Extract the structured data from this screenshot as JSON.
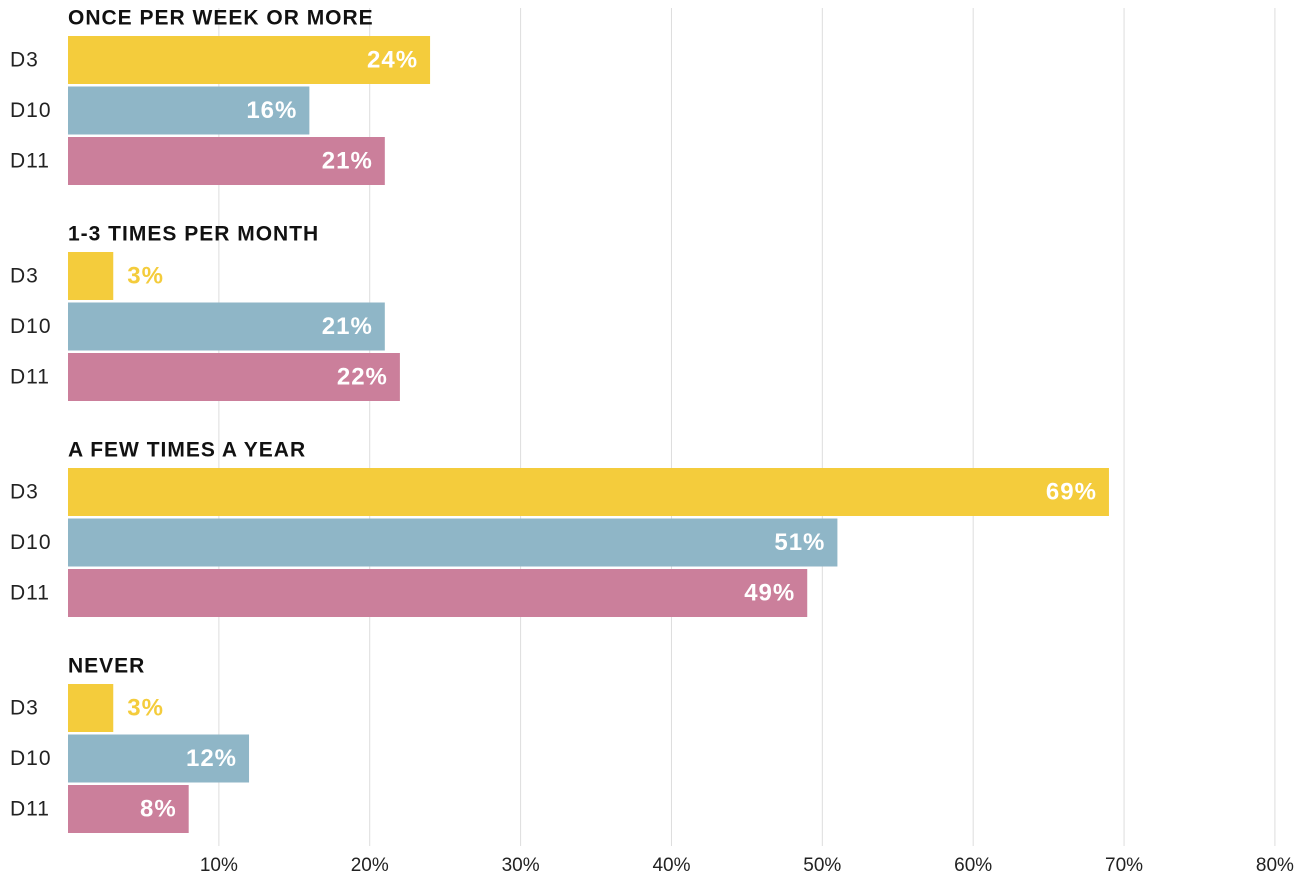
{
  "chart_data": {
    "type": "bar",
    "orientation": "horizontal",
    "categories": [
      "ONCE PER WEEK OR MORE",
      "1-3 TIMES PER MONTH",
      "A FEW TIMES A YEAR",
      "NEVER"
    ],
    "series": [
      {
        "name": "D3",
        "color": "#f4cc3c",
        "values": [
          24,
          3,
          69,
          3
        ],
        "value_labels": [
          "24%",
          "3%",
          "69%",
          "3%"
        ]
      },
      {
        "name": "D10",
        "color": "#8fb6c7",
        "values": [
          16,
          21,
          51,
          12
        ],
        "value_labels": [
          "16%",
          "21%",
          "51%",
          "12%"
        ]
      },
      {
        "name": "D11",
        "color": "#cb7f9b",
        "values": [
          21,
          22,
          49,
          8
        ],
        "value_labels": [
          "21%",
          "22%",
          "49%",
          "8%"
        ]
      }
    ],
    "xlim": [
      0,
      81
    ],
    "xticks": [
      {
        "value": 10,
        "label": "10%"
      },
      {
        "value": 20,
        "label": "20%"
      },
      {
        "value": 30,
        "label": "30%"
      },
      {
        "value": 40,
        "label": "40%"
      },
      {
        "value": 50,
        "label": "50%"
      },
      {
        "value": 60,
        "label": "60%"
      },
      {
        "value": 70,
        "label": "70%"
      },
      {
        "value": 80,
        "label": "80%"
      }
    ],
    "grid": true
  }
}
